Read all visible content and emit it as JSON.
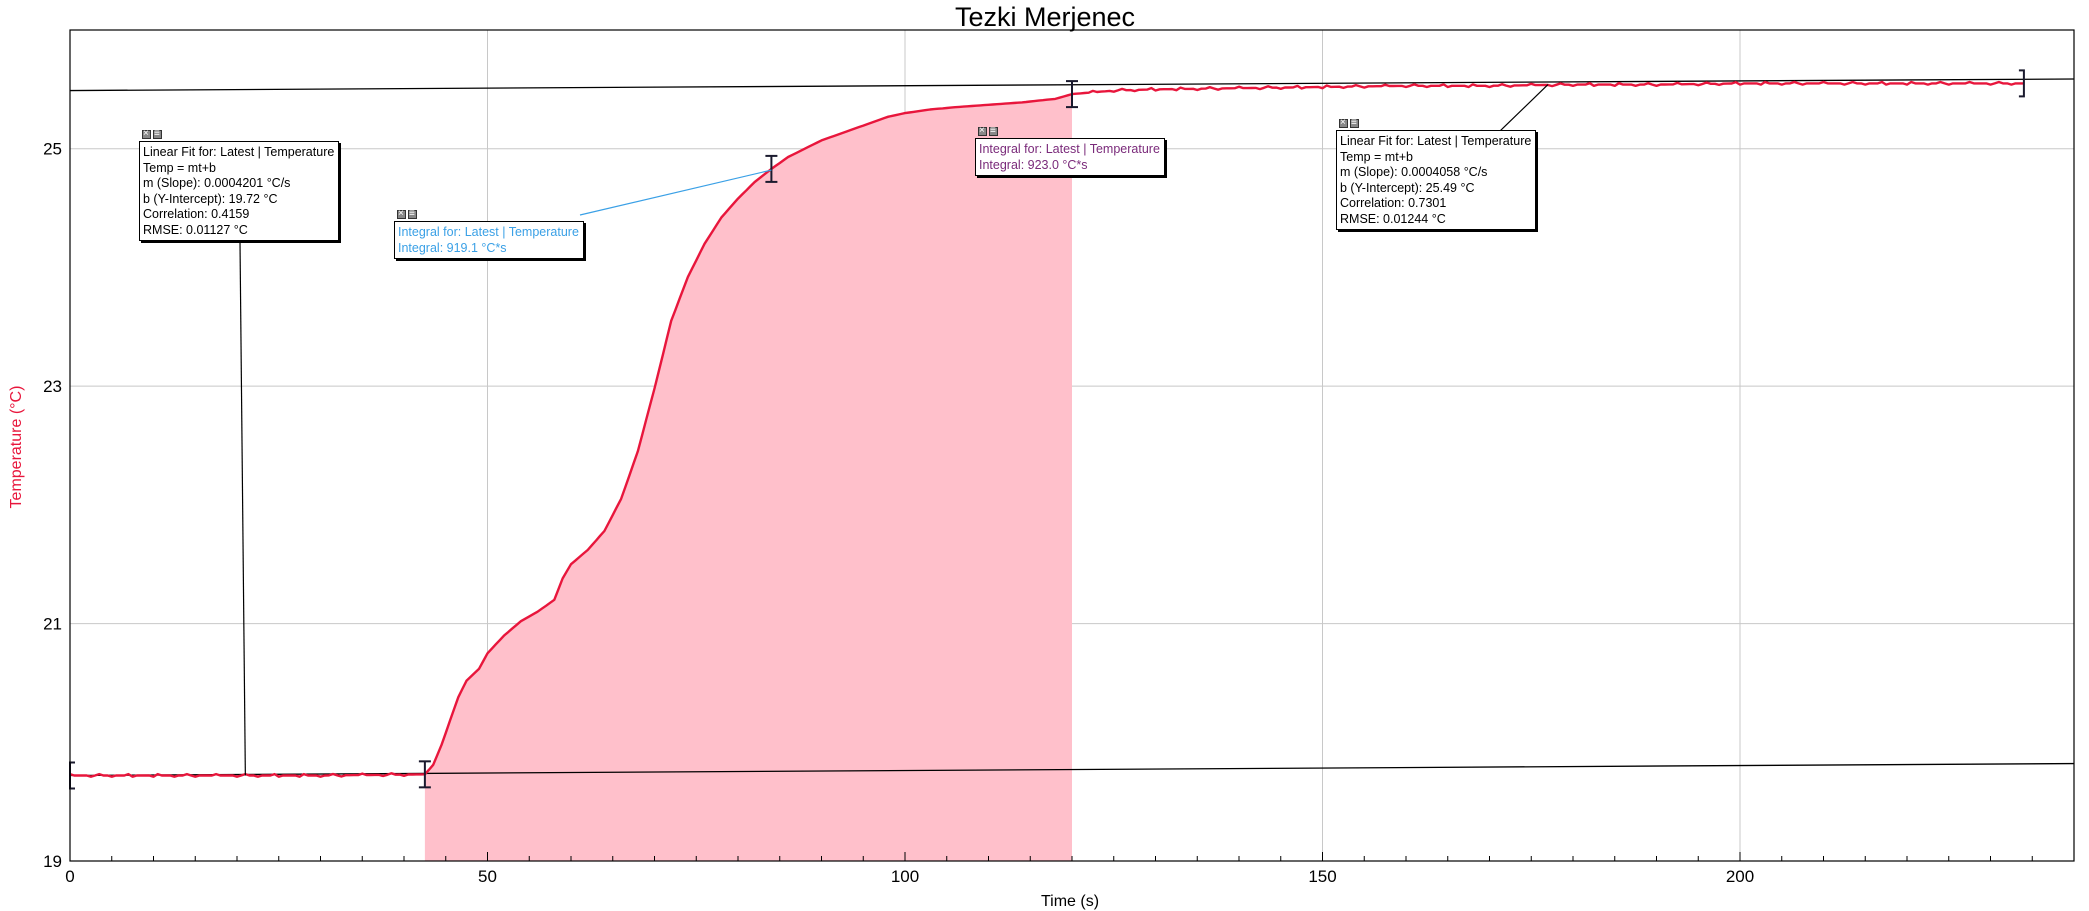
{
  "chart_data": {
    "type": "area",
    "title": "Tezki Merjenec",
    "xlabel": "Time (s)",
    "ylabel": "Temperature (°C)",
    "xlim": [
      0,
      240
    ],
    "ylim": [
      19,
      26
    ],
    "xticks": [
      0,
      50,
      100,
      150,
      200
    ],
    "yticks": [
      19,
      21,
      23,
      25
    ],
    "xticks_minor_step": 5,
    "grid": true,
    "series": [
      {
        "points": [
          [
            0,
            19.72
          ],
          [
            10,
            19.72
          ],
          [
            20,
            19.72
          ],
          [
            30,
            19.72
          ],
          [
            42.5,
            19.73
          ],
          [
            43.5,
            19.81
          ],
          [
            44.5,
            19.98
          ],
          [
            45.5,
            20.18
          ],
          [
            46.5,
            20.38
          ],
          [
            47.5,
            20.52
          ],
          [
            49,
            20.62
          ],
          [
            50,
            20.75
          ],
          [
            52,
            20.9
          ],
          [
            54,
            21.02
          ],
          [
            56,
            21.1
          ],
          [
            58,
            21.2
          ],
          [
            59,
            21.38
          ],
          [
            60,
            21.5
          ],
          [
            62,
            21.62
          ],
          [
            64,
            21.78
          ],
          [
            66,
            22.05
          ],
          [
            68,
            22.45
          ],
          [
            70,
            22.98
          ],
          [
            72,
            23.55
          ],
          [
            74,
            23.92
          ],
          [
            76,
            24.2
          ],
          [
            78,
            24.42
          ],
          [
            80,
            24.58
          ],
          [
            82,
            24.72
          ],
          [
            84,
            24.83
          ],
          [
            86,
            24.93
          ],
          [
            88,
            25.0
          ],
          [
            90,
            25.07
          ],
          [
            92,
            25.12
          ],
          [
            94,
            25.17
          ],
          [
            96,
            25.22
          ],
          [
            98,
            25.27
          ],
          [
            100,
            25.3
          ],
          [
            103,
            25.33
          ],
          [
            106,
            25.35
          ],
          [
            110,
            25.37
          ],
          [
            114,
            25.39
          ],
          [
            118,
            25.42
          ],
          [
            120,
            25.46
          ],
          [
            125,
            25.49
          ],
          [
            130,
            25.5
          ],
          [
            140,
            25.51
          ],
          [
            150,
            25.52
          ],
          [
            160,
            25.53
          ],
          [
            170,
            25.53
          ],
          [
            180,
            25.54
          ],
          [
            190,
            25.54
          ],
          [
            200,
            25.55
          ],
          [
            210,
            25.55
          ],
          [
            220,
            25.55
          ],
          [
            230,
            25.55
          ],
          [
            234,
            25.55
          ]
        ]
      }
    ],
    "integral_region": {
      "x_start": 42.5,
      "x_end": 120
    },
    "fits": [
      {
        "type": "linear",
        "slope": 0.0004201,
        "intercept": 19.72,
        "x_range": [
          0,
          240
        ]
      },
      {
        "type": "linear",
        "slope": 0.0004058,
        "intercept": 25.49,
        "x_range": [
          0,
          240
        ]
      }
    ],
    "brackets": [
      0,
      42.5,
      84,
      120,
      234
    ],
    "annotations": [
      {
        "id": "linfit1",
        "lines": [
          "Linear Fit for: Latest | Temperature",
          "Temp = mt+b",
          "m (Slope): 0.0004201 °C/s",
          "b (Y-Intercept): 19.72 °C",
          "Correlation: 0.4159",
          "RMSE: 0.01127 °C"
        ],
        "color": "#000000",
        "anchor": [
          21,
          19.72
        ]
      },
      {
        "id": "integral1",
        "lines": [
          "Integral for: Latest | Temperature",
          "Integral: 919.1 °C*s"
        ],
        "color": "#3aa0e6",
        "anchor": [
          84,
          24.82
        ]
      },
      {
        "id": "integral2",
        "lines": [
          "Integral for: Latest | Temperature",
          "Integral: 923.0 °C*s"
        ],
        "color": "#7a2a7a",
        "anchor": [
          120,
          25.46
        ]
      },
      {
        "id": "linfit2",
        "lines": [
          "Linear Fit for: Latest | Temperature",
          "Temp = mt+b",
          "m (Slope): 0.0004058 °C/s",
          "b (Y-Intercept): 25.49 °C",
          "Correlation: 0.7301",
          "RMSE: 0.01244 °C"
        ],
        "color": "#000000",
        "anchor": [
          177,
          25.54
        ]
      }
    ],
    "colors": {
      "line": "#e8163c",
      "fill": "#ffc0cb",
      "ylabel": "#e8163c",
      "grid": "#c8c8c8",
      "fit": "#000000",
      "bracket": "#1a1a2e"
    }
  }
}
